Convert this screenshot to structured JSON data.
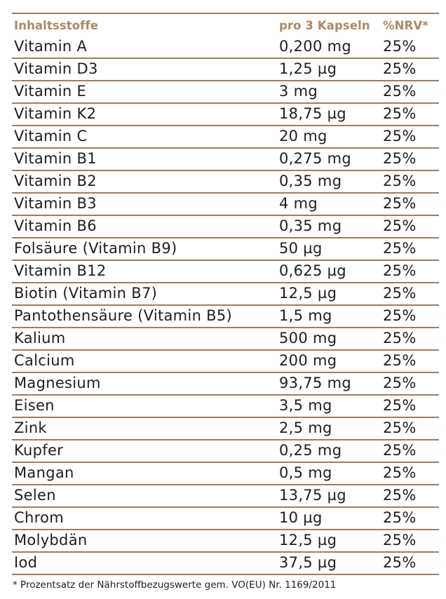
{
  "table": {
    "headers": {
      "name": "Inhaltsstoffe",
      "amount": "pro 3 Kapseln",
      "nrv": "%NRV*"
    },
    "rows": [
      {
        "name": "Vitamin A",
        "amount": "0,200 mg",
        "nrv": "25%"
      },
      {
        "name": "Vitamin D3",
        "amount": "1,25 µg",
        "nrv": "25%"
      },
      {
        "name": "Vitamin E",
        "amount": "3 mg",
        "nrv": "25%"
      },
      {
        "name": "Vitamin K2",
        "amount": "18,75 µg",
        "nrv": "25%"
      },
      {
        "name": "Vitamin C",
        "amount": "20 mg",
        "nrv": "25%"
      },
      {
        "name": "Vitamin B1",
        "amount": "0,275 mg",
        "nrv": "25%"
      },
      {
        "name": "Vitamin B2",
        "amount": "0,35 mg",
        "nrv": "25%"
      },
      {
        "name": "Vitamin B3",
        "amount": "4 mg",
        "nrv": "25%"
      },
      {
        "name": "Vitamin B6",
        "amount": "0,35 mg",
        "nrv": "25%"
      },
      {
        "name": "Folsäure (Vitamin B9)",
        "amount": "50 µg",
        "nrv": "25%"
      },
      {
        "name": "Vitamin B12",
        "amount": "0,625 µg",
        "nrv": "25%"
      },
      {
        "name": "Biotin (Vitamin B7)",
        "amount": "12,5 µg",
        "nrv": "25%"
      },
      {
        "name": "Pantothensäure (Vitamin B5)",
        "amount": "1,5 mg",
        "nrv": "25%"
      },
      {
        "name": "Kalium",
        "amount": "500 mg",
        "nrv": "25%"
      },
      {
        "name": "Calcium",
        "amount": "200 mg",
        "nrv": "25%"
      },
      {
        "name": "Magnesium",
        "amount": "93,75 mg",
        "nrv": "25%"
      },
      {
        "name": "Eisen",
        "amount": "3,5 mg",
        "nrv": "25%"
      },
      {
        "name": "Zink",
        "amount": "2,5 mg",
        "nrv": "25%"
      },
      {
        "name": "Kupfer",
        "amount": "0,25 mg",
        "nrv": "25%"
      },
      {
        "name": "Mangan",
        "amount": "0,5 mg",
        "nrv": "25%"
      },
      {
        "name": "Selen",
        "amount": "13,75 µg",
        "nrv": "25%"
      },
      {
        "name": "Chrom",
        "amount": "10 µg",
        "nrv": "25%"
      },
      {
        "name": "Molybdän",
        "amount": "12,5 µg",
        "nrv": "25%"
      },
      {
        "name": "Iod",
        "amount": "37,5 µg",
        "nrv": "25%"
      }
    ]
  },
  "footnote": "* Prozentsatz der Nährstoffbezugswerte gem. VO(EU) Nr. 1169/2011",
  "colors": {
    "accent_line": "#9f7e5d",
    "header_text": "#a98a69",
    "body_text": "#1e1e1e"
  }
}
